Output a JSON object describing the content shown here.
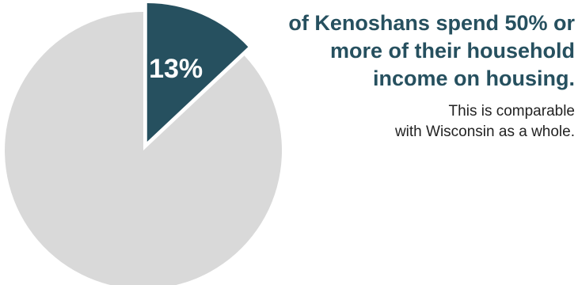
{
  "chart_data": {
    "type": "pie",
    "slices": [
      {
        "label": "13%",
        "value": 13,
        "color": "#26505f",
        "exploded": true
      },
      {
        "label": "",
        "value": 87,
        "color": "#d9d9d9",
        "exploded": false
      }
    ]
  },
  "headline": {
    "lines": [
      "of Kenoshans spend 50% or",
      "more of their household",
      "income on housing."
    ]
  },
  "subtext": {
    "lines": [
      "This is comparable",
      "with Wisconsin as a whole."
    ]
  }
}
